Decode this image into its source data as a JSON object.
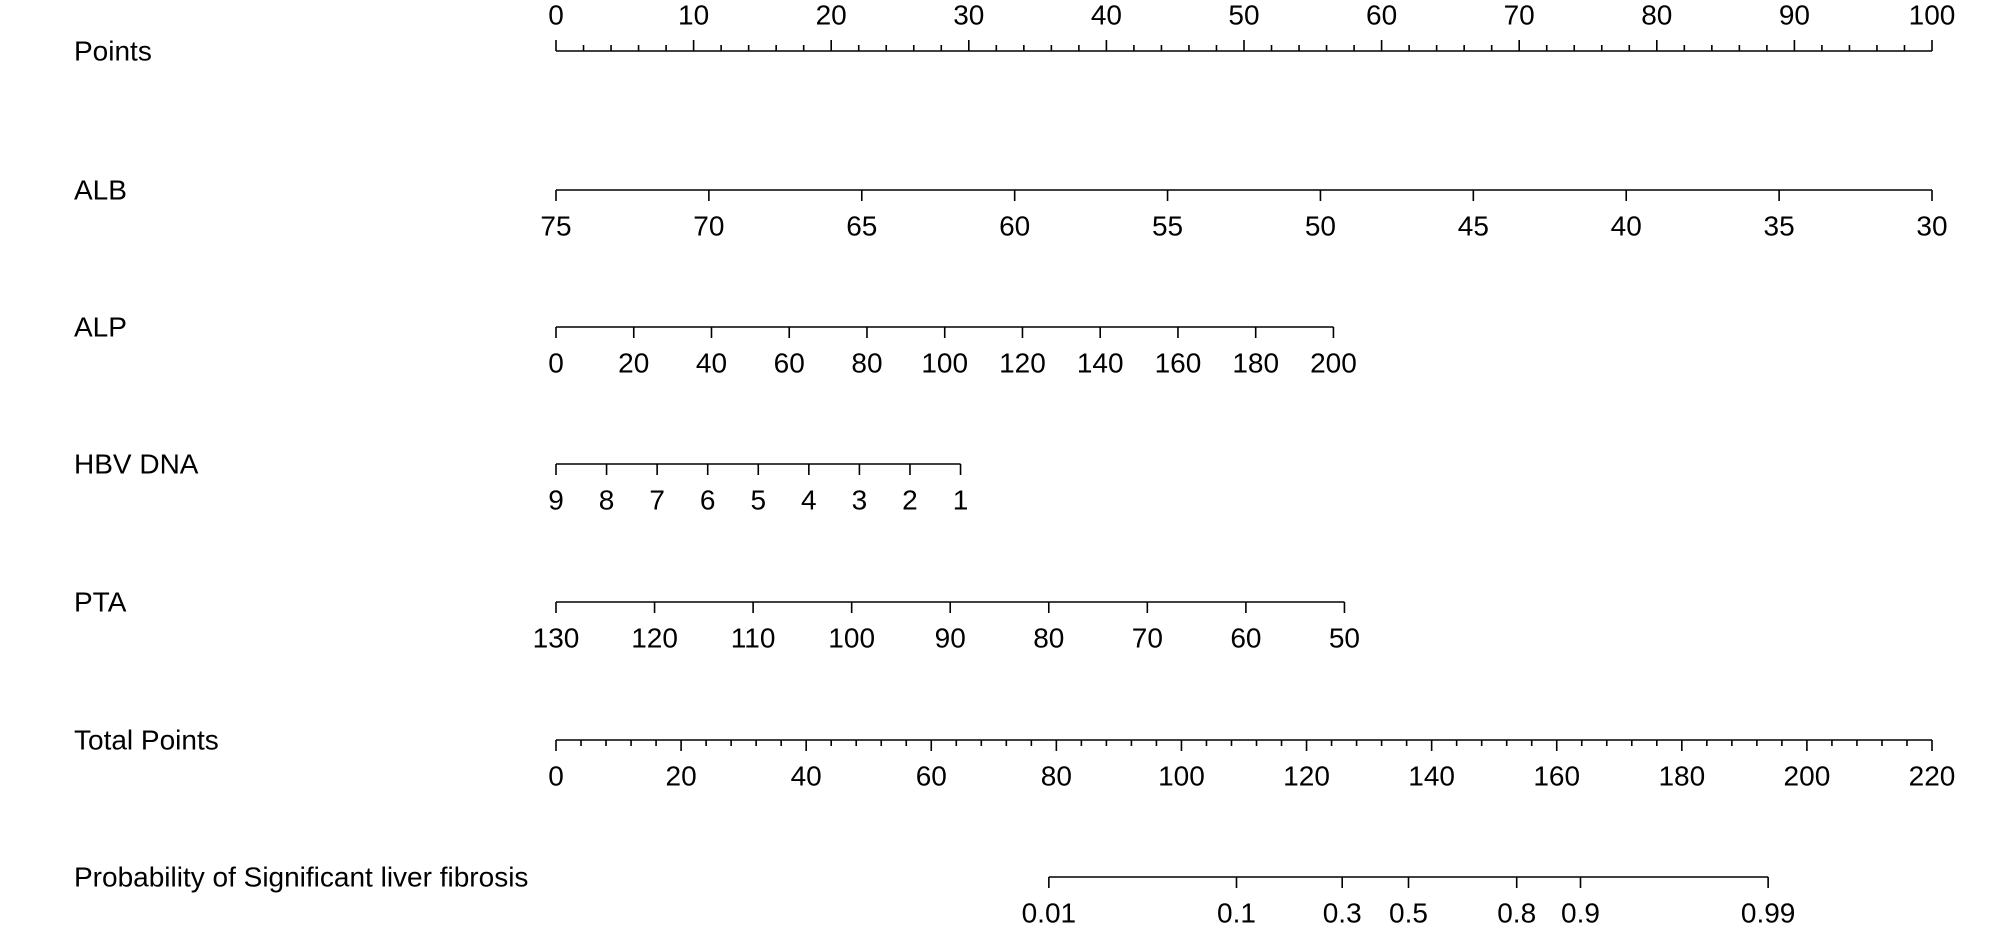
{
  "chart_data": {
    "type": "nomogram",
    "rows": [
      {
        "label": "Points",
        "ticks": [
          0,
          10,
          20,
          30,
          40,
          50,
          60,
          70,
          80,
          90,
          100
        ],
        "xlim": [
          0,
          100
        ],
        "points_range": [
          0,
          100
        ],
        "minor_step": 2
      },
      {
        "label": "ALB",
        "ticks": [
          75,
          70,
          65,
          60,
          55,
          50,
          45,
          40,
          35,
          30
        ],
        "xlim": [
          75,
          30
        ],
        "points_range": [
          0,
          100
        ]
      },
      {
        "label": "ALP",
        "ticks": [
          0,
          20,
          40,
          60,
          80,
          100,
          120,
          140,
          160,
          180,
          200
        ],
        "xlim": [
          0,
          200
        ],
        "points_range": [
          0,
          56.5
        ]
      },
      {
        "label": "HBV DNA",
        "ticks": [
          9,
          8,
          7,
          6,
          5,
          4,
          3,
          2,
          1
        ],
        "xlim": [
          9,
          1
        ],
        "points_range": [
          0,
          29.4
        ]
      },
      {
        "label": "PTA",
        "ticks": [
          130,
          120,
          110,
          100,
          90,
          80,
          70,
          60,
          50
        ],
        "xlim": [
          130,
          50
        ],
        "points_range": [
          0,
          57.3
        ]
      },
      {
        "label": "Total Points",
        "ticks": [
          0,
          20,
          40,
          60,
          80,
          100,
          120,
          140,
          160,
          180,
          200,
          220
        ],
        "xlim": [
          0,
          220
        ],
        "points_range": [
          0,
          100
        ],
        "minor_step": 4
      },
      {
        "label": "Probability of Significant liver fibrosis",
        "ticks": [
          0.01,
          0.1,
          0.3,
          0.5,
          0.8,
          0.9,
          0.99
        ],
        "total_points": [
          78.8,
          108.8,
          125.7,
          136.3,
          153.6,
          163.8,
          193.8
        ]
      }
    ]
  }
}
